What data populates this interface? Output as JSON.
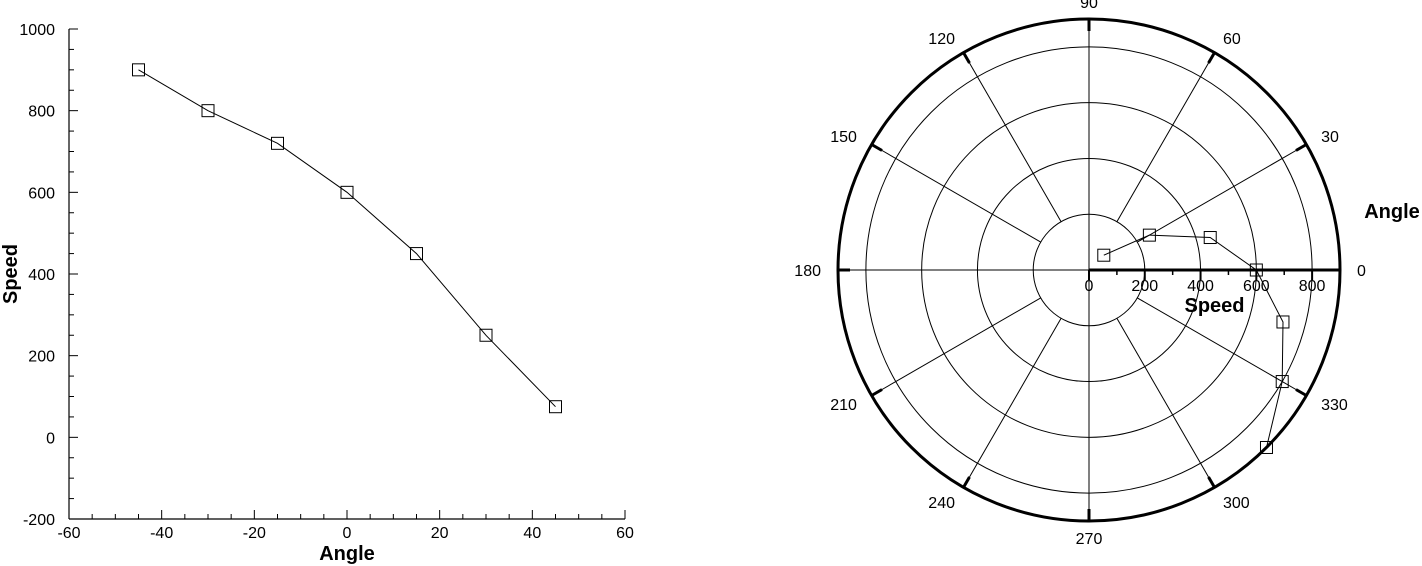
{
  "chart_data": [
    {
      "type": "line",
      "xlabel": "Angle",
      "ylabel": "Speed",
      "xlim": [
        -60,
        60
      ],
      "ylim": [
        -200,
        1000
      ],
      "xticks": [
        -60,
        -40,
        -20,
        0,
        20,
        40,
        60
      ],
      "yticks": [
        -200,
        0,
        200,
        400,
        600,
        800,
        1000
      ],
      "grid": false,
      "marker": "square",
      "line_color": "#000000",
      "series": [
        {
          "x": [
            -45,
            -30,
            -15,
            0,
            15,
            30,
            45
          ],
          "y": [
            900,
            800,
            720,
            600,
            450,
            250,
            75
          ]
        }
      ]
    },
    {
      "type": "polar",
      "angle_label": "Angle",
      "radius_label": "Speed",
      "rlim": [
        0,
        900
      ],
      "rticks": [
        0,
        200,
        400,
        600,
        800
      ],
      "angle_ticks": [
        0,
        30,
        60,
        90,
        120,
        150,
        180,
        210,
        240,
        270,
        300,
        330
      ],
      "angle_unit": "degrees",
      "marker": "square",
      "line_color": "#000000",
      "series": [
        {
          "theta": [
            -45,
            -30,
            -15,
            0,
            15,
            30,
            45
          ],
          "r": [
            900,
            800,
            720,
            600,
            450,
            250,
            75
          ]
        }
      ]
    }
  ]
}
